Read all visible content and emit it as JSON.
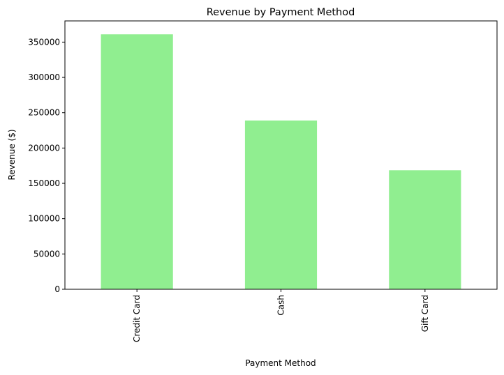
{
  "chart_data": {
    "type": "bar",
    "title": "Revenue by Payment Method",
    "xlabel": "Payment Method",
    "ylabel": "Revenue ($)",
    "categories": [
      "Credit Card",
      "Cash",
      "Gift Card"
    ],
    "values": [
      361000,
      239000,
      168500
    ],
    "ylim": [
      0,
      380000
    ],
    "yticks": [
      0,
      50000,
      100000,
      150000,
      200000,
      250000,
      300000,
      350000
    ],
    "ytick_labels": [
      "0",
      "50000",
      "100000",
      "150000",
      "200000",
      "250000",
      "300000",
      "350000"
    ],
    "bar_color": "#90EE90",
    "grid": false,
    "legend": "none",
    "xtick_rotation": "vertical"
  }
}
